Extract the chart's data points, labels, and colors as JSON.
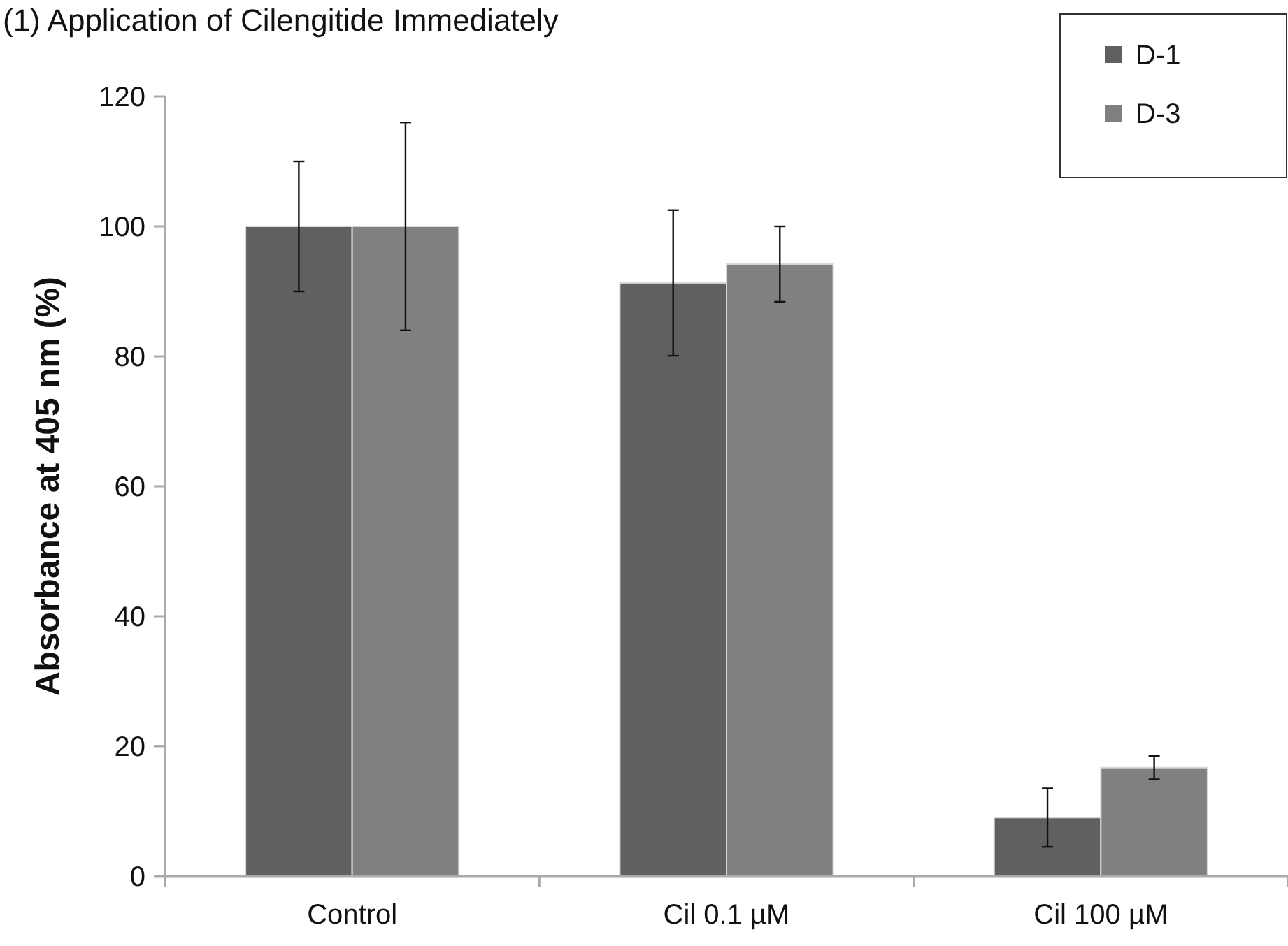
{
  "chart_data": {
    "type": "bar",
    "title": "(1) Application of Cilengitide Immediately",
    "ylabel": "Absorbance at 405 nm (%)",
    "categories": [
      "Control",
      "Cil 0.1 µM",
      "Cil 100 µM"
    ],
    "series": [
      {
        "name": "D-1",
        "color": "#606060",
        "values": [
          100,
          91.3,
          9
        ],
        "errors": [
          10,
          11.2,
          4.5
        ]
      },
      {
        "name": "D-3",
        "color": "#808080",
        "values": [
          100,
          94.2,
          16.7
        ],
        "errors": [
          16,
          5.8,
          1.8
        ]
      }
    ],
    "ylim": [
      0,
      120
    ],
    "yticks": [
      0,
      20,
      40,
      60,
      80,
      100,
      120
    ],
    "grid": false,
    "legend": "top right"
  }
}
